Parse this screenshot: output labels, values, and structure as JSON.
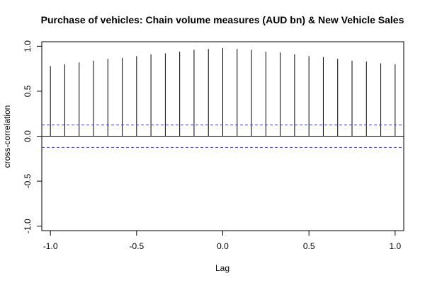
{
  "chart_data": {
    "type": "bar",
    "title": "Purchase of vehicles: Chain volume measures (AUD bn) & New Vehicle Sales",
    "xlabel": "Lag",
    "ylabel": "cross-correlation",
    "xlim": [
      -1.05,
      1.05
    ],
    "ylim": [
      -1.05,
      1.05
    ],
    "x_ticks": [
      -1.0,
      -0.5,
      0.0,
      0.5,
      1.0
    ],
    "x_tick_labels": [
      "-1.0",
      "-0.5",
      "0.0",
      "0.5",
      "1.0"
    ],
    "y_ticks": [
      -1.0,
      -0.5,
      0.0,
      0.5,
      1.0
    ],
    "y_tick_labels": [
      "-1.0",
      "-0.5",
      "0.0",
      "0.5",
      "1.0"
    ],
    "lags": [
      -1.0,
      -0.9167,
      -0.8333,
      -0.75,
      -0.6667,
      -0.5833,
      -0.5,
      -0.4167,
      -0.3333,
      -0.25,
      -0.1667,
      -0.0833,
      0.0,
      0.0833,
      0.1667,
      0.25,
      0.3333,
      0.4167,
      0.5,
      0.5833,
      0.6667,
      0.75,
      0.8333,
      0.9167,
      1.0
    ],
    "values": [
      0.78,
      0.8,
      0.82,
      0.84,
      0.86,
      0.87,
      0.89,
      0.91,
      0.92,
      0.94,
      0.96,
      0.97,
      0.98,
      0.97,
      0.96,
      0.94,
      0.93,
      0.91,
      0.89,
      0.88,
      0.86,
      0.84,
      0.83,
      0.81,
      0.8
    ],
    "confidence_bounds": [
      0.125,
      -0.125
    ],
    "colors": {
      "bars": "#000000",
      "ci": "#3b3bf0",
      "zero_line": "#000000"
    },
    "grid": false
  }
}
